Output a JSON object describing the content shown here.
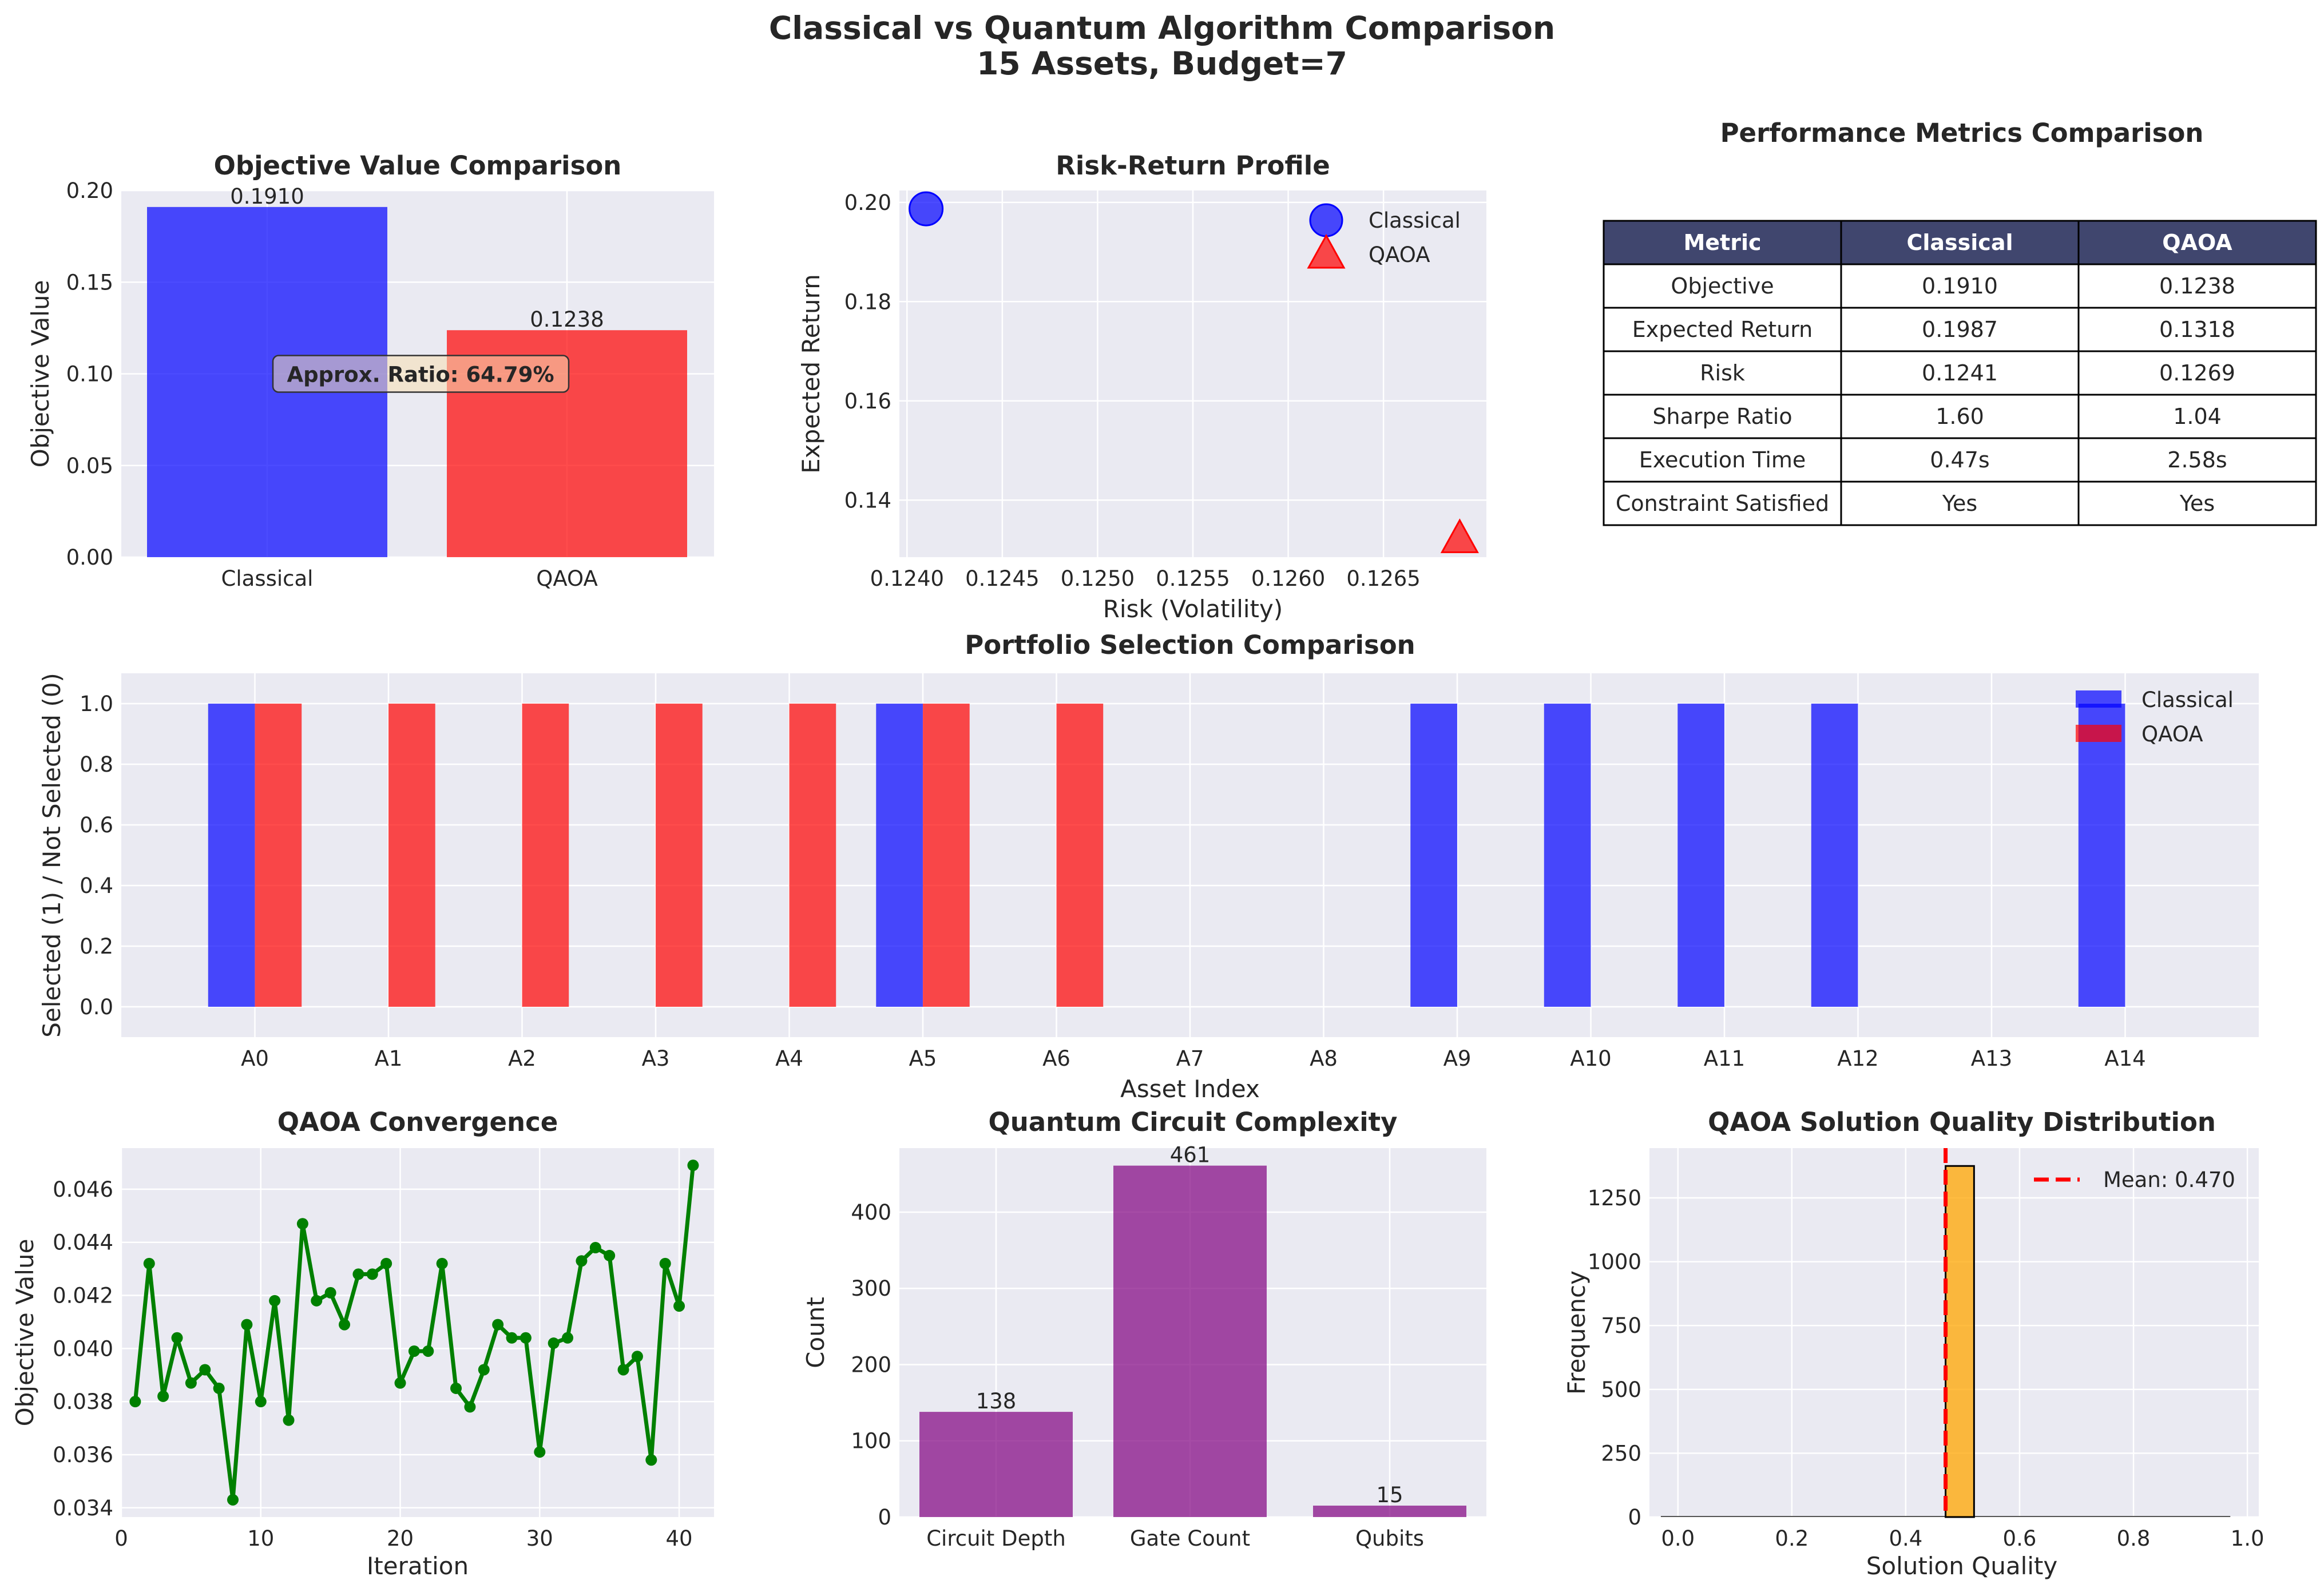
{
  "figure": {
    "title_line1": "Classical vs Quantum Algorithm Comparison",
    "title_line2": "15 Assets, Budget=7"
  },
  "colors": {
    "classical": "#0000ff",
    "qaoa": "#ff0000",
    "purple": "#800080",
    "green": "#008000",
    "orange": "#ffa500",
    "axes_bg": "#eaeaf2",
    "table_header": "#40466e"
  },
  "chart_data": [
    {
      "id": "objective",
      "type": "bar",
      "title": "Objective Value Comparison",
      "xlabel": "",
      "ylabel": "Objective Value",
      "categories": [
        "Classical",
        "QAOA"
      ],
      "values": [
        0.191,
        0.1238
      ],
      "value_labels": [
        "0.1910",
        "0.1238"
      ],
      "ylim": [
        0,
        0.2
      ],
      "yticks": [
        "0.00",
        "0.05",
        "0.10",
        "0.15",
        "0.20"
      ],
      "annotation": "Approx. Ratio: 64.79%",
      "grid": true
    },
    {
      "id": "risk_return",
      "type": "scatter",
      "title": "Risk-Return Profile",
      "xlabel": "Risk (Volatility)",
      "ylabel": "Expected Return",
      "series": [
        {
          "name": "Classical",
          "marker": "circle",
          "x": 0.1241,
          "y": 0.1987
        },
        {
          "name": "QAOA",
          "marker": "triangle",
          "x": 0.1269,
          "y": 0.1318
        }
      ],
      "xlim": [
        0.12396,
        0.12704
      ],
      "ylim": [
        0.1285,
        0.2024
      ],
      "xticks": [
        "0.1240",
        "0.1245",
        "0.1250",
        "0.1255",
        "0.1260",
        "0.1265"
      ],
      "yticks": [
        "0.14",
        "0.16",
        "0.18",
        "0.20"
      ],
      "legend": "top-right",
      "grid": true
    },
    {
      "id": "metrics_table",
      "type": "table",
      "title": "Performance Metrics Comparison",
      "columns": [
        "Metric",
        "Classical",
        "QAOA"
      ],
      "rows": [
        [
          "Objective",
          "0.1910",
          "0.1238"
        ],
        [
          "Expected Return",
          "0.1987",
          "0.1318"
        ],
        [
          "Risk",
          "0.1241",
          "0.1269"
        ],
        [
          "Sharpe Ratio",
          "1.60",
          "1.04"
        ],
        [
          "Execution Time",
          "0.47s",
          "2.58s"
        ],
        [
          "Constraint Satisfied",
          "Yes",
          "Yes"
        ]
      ]
    },
    {
      "id": "selection",
      "type": "bar",
      "title": "Portfolio Selection Comparison",
      "xlabel": "Asset Index",
      "ylabel": "Selected (1) / Not Selected (0)",
      "categories": [
        "A0",
        "A1",
        "A2",
        "A3",
        "A4",
        "A5",
        "A6",
        "A7",
        "A8",
        "A9",
        "A10",
        "A11",
        "A12",
        "A13",
        "A14"
      ],
      "series": [
        {
          "name": "Classical",
          "values": [
            1,
            0,
            0,
            0,
            0,
            1,
            0,
            0,
            0,
            1,
            1,
            1,
            1,
            0,
            1
          ]
        },
        {
          "name": "QAOA",
          "values": [
            1,
            1,
            1,
            1,
            1,
            1,
            1,
            0,
            0,
            0,
            0,
            0,
            0,
            0,
            0
          ]
        }
      ],
      "ylim": [
        -0.1,
        1.1
      ],
      "yticks": [
        "0.0",
        "0.2",
        "0.4",
        "0.6",
        "0.8",
        "1.0"
      ],
      "legend": "top-right",
      "grid": true
    },
    {
      "id": "convergence",
      "type": "line",
      "title": "QAOA Convergence",
      "xlabel": "Iteration",
      "ylabel": "Objective Value",
      "x": [
        1,
        2,
        3,
        4,
        5,
        6,
        7,
        8,
        9,
        10,
        11,
        12,
        13,
        14,
        15,
        16,
        17,
        18,
        19,
        20,
        21,
        22,
        23,
        24,
        25,
        26,
        27,
        28,
        29,
        30,
        31,
        32,
        33,
        34,
        35,
        36,
        37,
        38,
        39,
        40,
        41
      ],
      "values": [
        0.038,
        0.0432,
        0.0382,
        0.0404,
        0.0387,
        0.0392,
        0.0385,
        0.0343,
        0.0409,
        0.038,
        0.0418,
        0.0373,
        0.0447,
        0.0418,
        0.0421,
        0.0409,
        0.0428,
        0.0428,
        0.0432,
        0.0387,
        0.0399,
        0.0399,
        0.0432,
        0.0385,
        0.0378,
        0.0392,
        0.0409,
        0.0404,
        0.0404,
        0.0361,
        0.0402,
        0.0404,
        0.0433,
        0.0438,
        0.0435,
        0.0392,
        0.0397,
        0.0358,
        0.0432,
        0.0416,
        0.0469
      ],
      "xlim": [
        0,
        42.5
      ],
      "ylim": [
        0.03365,
        0.04755
      ],
      "xticks": [
        "0",
        "10",
        "20",
        "30",
        "40"
      ],
      "yticks": [
        "0.034",
        "0.036",
        "0.038",
        "0.040",
        "0.042",
        "0.044",
        "0.046"
      ],
      "grid": true
    },
    {
      "id": "circuit",
      "type": "bar",
      "title": "Quantum Circuit Complexity",
      "xlabel": "",
      "ylabel": "Count",
      "categories": [
        "Circuit Depth",
        "Gate Count",
        "Qubits"
      ],
      "values": [
        138,
        461,
        15
      ],
      "value_labels": [
        "138",
        "461",
        "15"
      ],
      "ylim": [
        0,
        484
      ],
      "yticks": [
        "0",
        "100",
        "200",
        "300",
        "400"
      ],
      "grid": true
    },
    {
      "id": "quality",
      "type": "bar",
      "title": "QAOA Solution Quality Distribution",
      "xlabel": "Solution Quality",
      "ylabel": "Frequency",
      "bins": [
        {
          "x0": 0.47,
          "x1": 0.52,
          "count": 1375
        }
      ],
      "mean_label": "Mean: 0.470",
      "mean": 0.47,
      "xlim": [
        -0.05,
        1.02
      ],
      "ylim": [
        0,
        1445
      ],
      "xticks": [
        "0.0",
        "0.2",
        "0.4",
        "0.6",
        "0.8",
        "1.0"
      ],
      "yticks": [
        "0",
        "250",
        "500",
        "750",
        "1000",
        "1250"
      ],
      "legend": "top-right",
      "grid": true
    }
  ]
}
